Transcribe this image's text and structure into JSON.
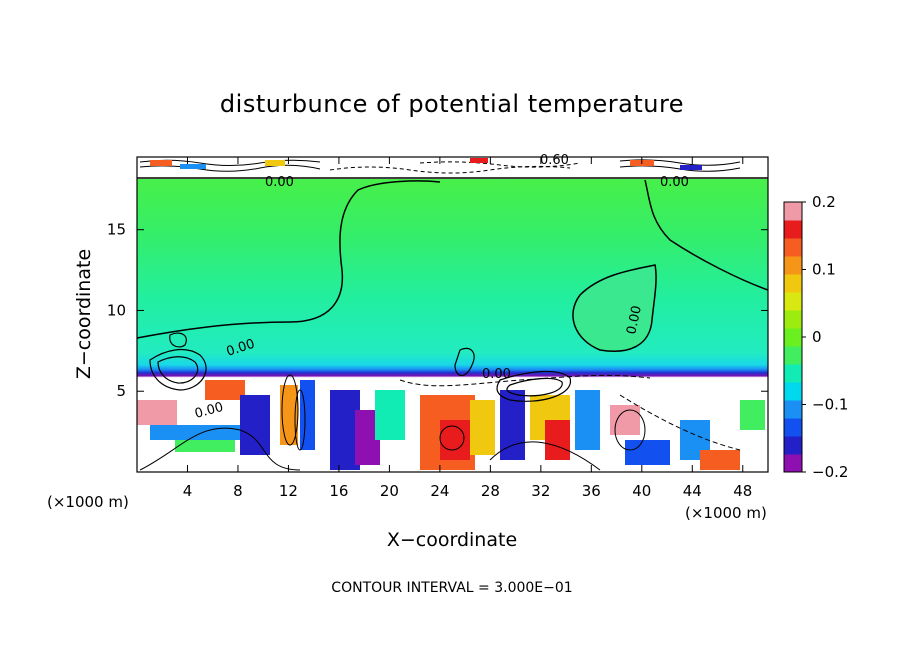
{
  "chart_data": {
    "type": "heatmap",
    "title": "disturbunce of potential temperature",
    "xlabel": "X−coordinate",
    "ylabel": "Z−coordinate",
    "x_unit_left": "(×1000 m)",
    "x_unit_right": "(×1000 m)",
    "xlim": [
      0,
      50
    ],
    "ylim": [
      0,
      19.5
    ],
    "xticks": [
      4,
      8,
      12,
      16,
      20,
      24,
      28,
      32,
      36,
      40,
      44,
      48
    ],
    "xtick_labels": [
      "4",
      "8",
      "12",
      "16",
      "20",
      "24",
      "28",
      "32",
      "36",
      "40",
      "44",
      "48"
    ],
    "yticks": [
      5,
      10,
      15
    ],
    "ytick_labels": [
      "5",
      "10",
      "15"
    ],
    "colorbar": {
      "range": [
        -0.2,
        0.2
      ],
      "ticks": [
        0.2,
        0.1,
        0,
        -0.1,
        -0.2
      ],
      "tick_labels": [
        "0.2",
        "0.1",
        "0",
        "−0.1",
        "−0.2"
      ],
      "colors": [
        "#8e10b0",
        "#2420c8",
        "#1250f0",
        "#1a90f5",
        "#00d8ee",
        "#10ecb4",
        "#40ee60",
        "#6af020",
        "#9cec10",
        "#d8e810",
        "#f0c810",
        "#f59618",
        "#f55e20",
        "#e81c1c",
        "#f09aa8"
      ]
    },
    "contour_labels": [
      "0.00",
      "0.00",
      "0.00",
      "0.00",
      "0.00",
      "0.00",
      "0.60"
    ],
    "contour_interval": "CONTOUR INTERVAL = 3.000E−01",
    "grid": false
  }
}
